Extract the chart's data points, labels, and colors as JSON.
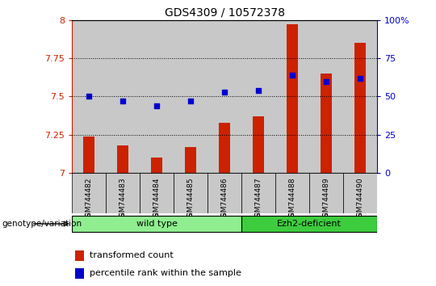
{
  "title": "GDS4309 / 10572378",
  "samples": [
    "GSM744482",
    "GSM744483",
    "GSM744484",
    "GSM744485",
    "GSM744486",
    "GSM744487",
    "GSM744488",
    "GSM744489",
    "GSM744490"
  ],
  "red_values": [
    7.24,
    7.18,
    7.1,
    7.17,
    7.33,
    7.37,
    7.97,
    7.65,
    7.85
  ],
  "blue_values": [
    50,
    47,
    44,
    47,
    53,
    54,
    64,
    60,
    62
  ],
  "ylim_left": [
    7.0,
    8.0
  ],
  "ylim_right": [
    0,
    100
  ],
  "yticks_left": [
    7.0,
    7.25,
    7.5,
    7.75,
    8.0
  ],
  "yticks_right": [
    0,
    25,
    50,
    75,
    100
  ],
  "groups": [
    {
      "label": "wild type",
      "indices": [
        0,
        1,
        2,
        3,
        4
      ],
      "color": "#90EE90"
    },
    {
      "label": "Ezh2-deficient",
      "indices": [
        5,
        6,
        7,
        8
      ],
      "color": "#3DCC3D"
    }
  ],
  "red_color": "#CC2200",
  "blue_color": "#0000CC",
  "bar_width": 0.35,
  "group_label": "genotype/variation",
  "legend_red": "transformed count",
  "legend_blue": "percentile rank within the sample",
  "col_bg_color": "#C8C8C8",
  "right_axis_color": "#0000CC",
  "left_axis_color": "#CC2200"
}
